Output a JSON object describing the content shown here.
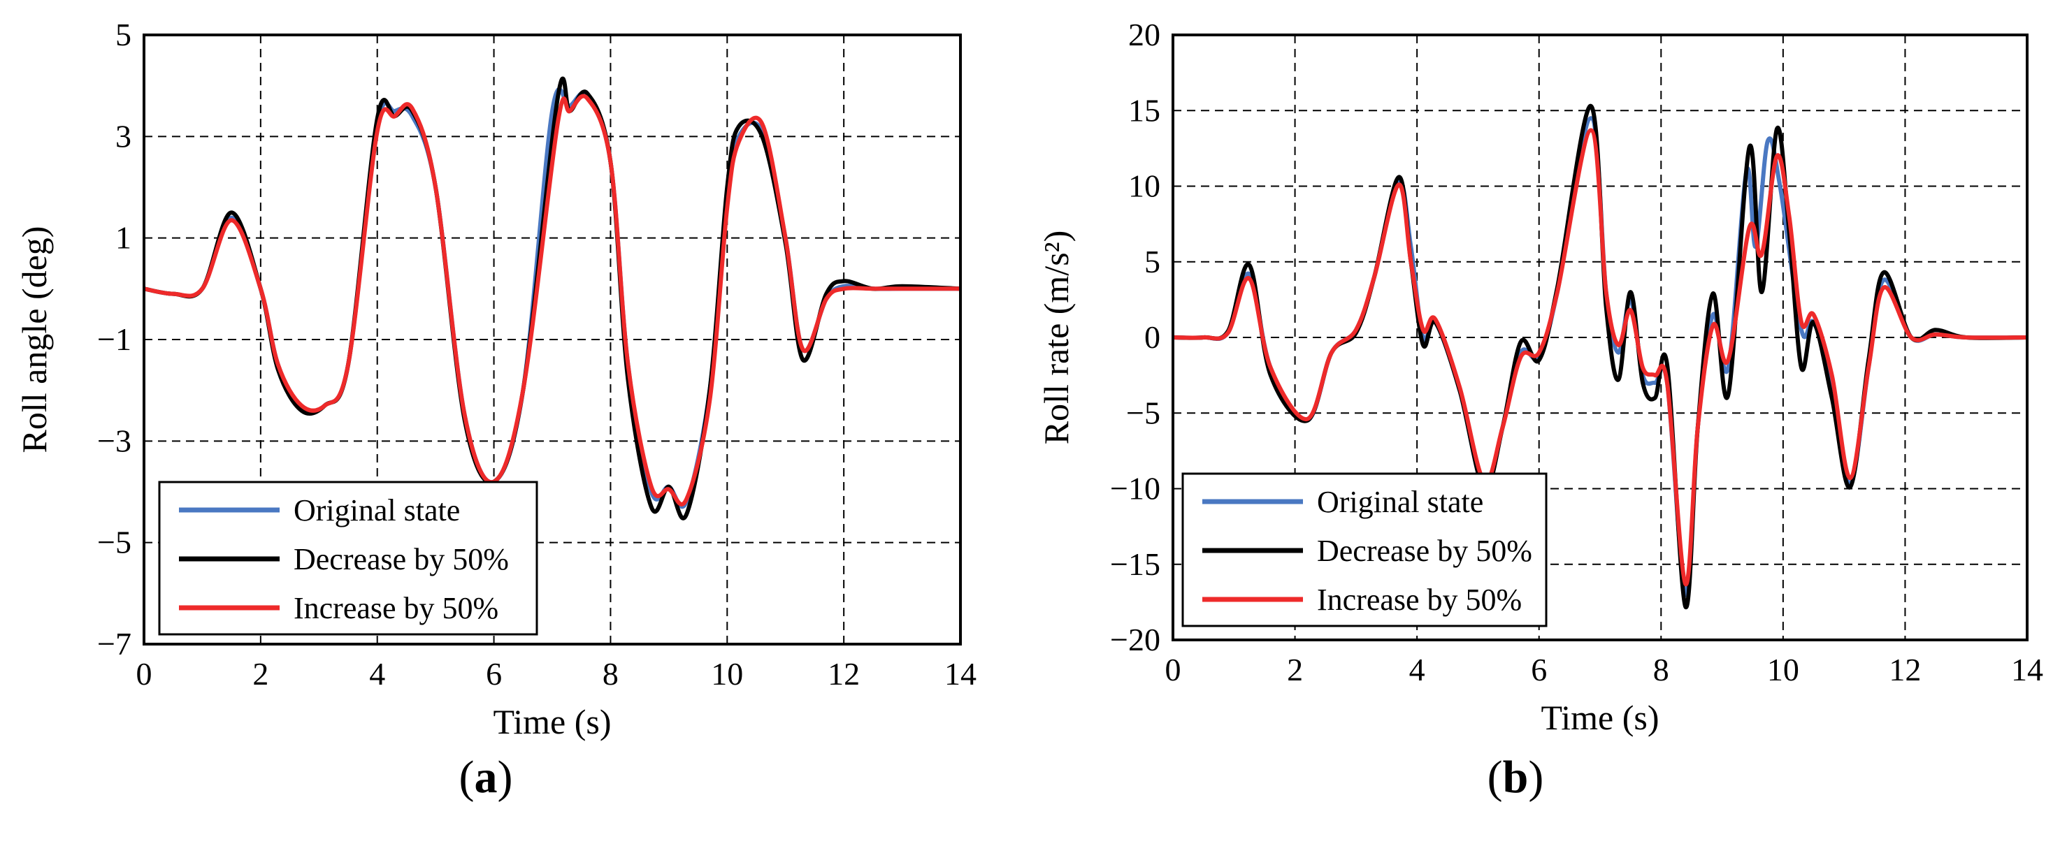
{
  "colors": {
    "original": "#4a78c2",
    "decrease": "#000000",
    "increase": "#ee2a2a",
    "grid": "#000000",
    "axis": "#000000"
  },
  "panel_labels": {
    "a": {
      "open": "(",
      "letter": "a",
      "close": ")"
    },
    "b": {
      "open": "(",
      "letter": "b",
      "close": ")"
    }
  },
  "chart_data": [
    {
      "id": "a",
      "type": "line",
      "xlabel": "Time (s)",
      "ylabel": "Roll angle (deg)",
      "xlim": [
        0,
        14
      ],
      "ylim": [
        -7,
        5
      ],
      "xticks": [
        0,
        2,
        4,
        6,
        8,
        10,
        12,
        14
      ],
      "yticks": [
        -7,
        -5,
        -3,
        -1,
        1,
        3,
        5
      ],
      "grid": true,
      "legend_position": "bottom-left",
      "legend": [
        "Original state",
        "Decrease by 50%",
        "Increase by 50%"
      ],
      "series": [
        {
          "name": "Original state",
          "color_key": "original",
          "x": [
            0,
            0.5,
            1,
            1.5,
            2,
            2.3,
            2.7,
            3.1,
            3.5,
            4,
            4.3,
            4.6,
            5,
            5.5,
            6,
            6.5,
            7,
            7.3,
            7.6,
            8,
            8.3,
            8.7,
            9,
            9.3,
            9.7,
            10,
            10.2,
            10.6,
            11,
            11.3,
            11.7,
            12,
            12.5,
            13,
            14
          ],
          "y": [
            0,
            -0.1,
            0,
            1.4,
            0,
            -1.5,
            -2.35,
            -2.3,
            -1.5,
            3.2,
            3.5,
            3.4,
            2,
            -2.5,
            -3.8,
            -2,
            3.5,
            3.6,
            3.8,
            2.5,
            -1.5,
            -4,
            -3.9,
            -4.2,
            -2,
            1.8,
            3.0,
            3.1,
            1.0,
            -1.2,
            -0.2,
            0.05,
            0,
            0,
            0
          ]
        },
        {
          "name": "Decrease by 50%",
          "color_key": "decrease",
          "x": [
            0,
            0.5,
            1,
            1.5,
            2,
            2.3,
            2.7,
            3.1,
            3.5,
            4,
            4.3,
            4.6,
            5,
            5.5,
            6,
            6.5,
            7.1,
            7.3,
            7.6,
            8,
            8.3,
            8.7,
            9,
            9.3,
            9.7,
            10,
            10.2,
            10.6,
            11,
            11.3,
            11.7,
            12,
            12.5,
            13,
            14
          ],
          "y": [
            0,
            -0.1,
            0,
            1.5,
            0,
            -1.6,
            -2.4,
            -2.3,
            -1.5,
            3.35,
            3.4,
            3.5,
            2,
            -2.6,
            -3.8,
            -2,
            3.8,
            3.5,
            3.85,
            2.5,
            -1.8,
            -4.3,
            -3.9,
            -4.45,
            -2,
            2,
            3.2,
            3.0,
            0.9,
            -1.4,
            -0.1,
            0.15,
            0,
            0.05,
            0
          ]
        },
        {
          "name": "Increase by 50%",
          "color_key": "increase",
          "x": [
            0,
            0.5,
            1,
            1.5,
            2,
            2.3,
            2.7,
            3.1,
            3.5,
            4,
            4.3,
            4.6,
            5,
            5.5,
            6,
            6.5,
            7.1,
            7.3,
            7.6,
            8,
            8.3,
            8.7,
            9,
            9.3,
            9.7,
            10,
            10.2,
            10.6,
            11,
            11.3,
            11.7,
            12,
            12.5,
            13,
            14
          ],
          "y": [
            0,
            -0.1,
            0,
            1.35,
            0,
            -1.5,
            -2.3,
            -2.3,
            -1.5,
            3.1,
            3.4,
            3.55,
            2,
            -2.5,
            -3.8,
            -2,
            3.3,
            3.5,
            3.75,
            2.5,
            -1.5,
            -3.9,
            -3.95,
            -4.15,
            -2.2,
            1.6,
            2.9,
            3.25,
            1.0,
            -1.2,
            -0.2,
            0.0,
            0,
            0,
            0
          ]
        }
      ]
    },
    {
      "id": "b",
      "type": "line",
      "xlabel": "Time (s)",
      "ylabel": "Roll rate (m/s²)",
      "xlim": [
        0,
        14
      ],
      "ylim": [
        -20,
        20
      ],
      "xticks": [
        0,
        2,
        4,
        6,
        8,
        10,
        12,
        14
      ],
      "yticks": [
        -20,
        -15,
        -10,
        -5,
        0,
        5,
        10,
        15,
        20
      ],
      "grid": true,
      "legend_position": "bottom-left",
      "legend": [
        "Original state",
        "Decrease by 50%",
        "Increase by 50%"
      ],
      "series": [
        {
          "name": "Original state",
          "color_key": "original",
          "x": [
            0,
            0.5,
            0.9,
            1.25,
            1.6,
            2.2,
            2.6,
            3,
            3.3,
            3.7,
            3.9,
            4.1,
            4.3,
            4.7,
            5.1,
            5.4,
            5.7,
            6,
            6.3,
            6.85,
            7.1,
            7.3,
            7.5,
            7.7,
            7.9,
            8.1,
            8.4,
            8.6,
            8.85,
            9.1,
            9.4,
            9.55,
            9.75,
            9.95,
            10.3,
            10.5,
            10.8,
            11.1,
            11.4,
            11.65,
            12.1,
            12.5,
            13,
            14
          ],
          "y": [
            0,
            0,
            0.3,
            4.2,
            -2,
            -5.5,
            -1,
            0.5,
            4,
            10.3,
            6,
            0,
            1,
            -3.5,
            -10,
            -6,
            -1,
            -1.3,
            3,
            14.5,
            3,
            -1,
            2.5,
            -2.5,
            -3,
            -3,
            -17,
            -6,
            1.5,
            -2,
            11,
            6,
            13,
            10,
            0.5,
            1,
            -3,
            -9.7,
            -2,
            3.8,
            0,
            0.2,
            0,
            0
          ]
        },
        {
          "name": "Decrease by 50%",
          "color_key": "decrease",
          "x": [
            0,
            0.5,
            0.9,
            1.25,
            1.6,
            2.2,
            2.6,
            3,
            3.3,
            3.7,
            3.9,
            4.1,
            4.3,
            4.7,
            5.1,
            5.4,
            5.7,
            6,
            6.3,
            6.85,
            7.1,
            7.3,
            7.5,
            7.7,
            7.9,
            8.1,
            8.4,
            8.6,
            8.85,
            9.1,
            9.45,
            9.65,
            9.9,
            10.1,
            10.3,
            10.5,
            10.8,
            11.1,
            11.4,
            11.65,
            12.1,
            12.5,
            13,
            14
          ],
          "y": [
            0,
            0,
            0.4,
            4.8,
            -2.5,
            -5.5,
            -1,
            0.3,
            4,
            10.6,
            5,
            -0.5,
            1,
            -3.5,
            -10,
            -6,
            -0.3,
            -1.5,
            3.3,
            15.3,
            2,
            -2.8,
            3,
            -3,
            -4,
            -1.8,
            -17.8,
            -6,
            2.9,
            -3.8,
            12.6,
            3,
            13.8,
            7,
            -2,
            1,
            -4,
            -9.9,
            -1.5,
            4.3,
            0,
            0.5,
            0,
            0
          ]
        },
        {
          "name": "Increase by 50%",
          "color_key": "increase",
          "x": [
            0,
            0.5,
            0.9,
            1.25,
            1.6,
            2.2,
            2.6,
            3,
            3.3,
            3.7,
            3.9,
            4.1,
            4.3,
            4.7,
            5.1,
            5.4,
            5.7,
            6,
            6.3,
            6.85,
            7.1,
            7.3,
            7.5,
            7.7,
            7.9,
            8.1,
            8.4,
            8.6,
            8.85,
            9.1,
            9.45,
            9.65,
            9.9,
            10.1,
            10.3,
            10.5,
            10.8,
            11.1,
            11.4,
            11.65,
            12.1,
            12.5,
            13,
            14
          ],
          "y": [
            0,
            0,
            0.3,
            3.9,
            -2,
            -5.4,
            -1,
            0.5,
            4,
            10.1,
            5,
            0.5,
            1.2,
            -3.3,
            -9.5,
            -6,
            -1.3,
            -1,
            3,
            13.7,
            3,
            -0.5,
            1.8,
            -2,
            -2.5,
            -3,
            -16.3,
            -6,
            0.8,
            -1.5,
            7.3,
            5.5,
            12,
            8,
            1,
            1.5,
            -2.5,
            -9.3,
            -2,
            3.3,
            0,
            0.2,
            0,
            0
          ]
        }
      ]
    }
  ]
}
